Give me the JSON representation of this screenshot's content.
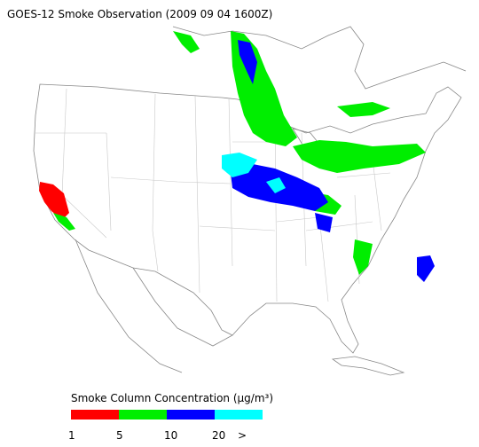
{
  "header": {
    "title": "GOES-12 Smoke Observation (2009 09 04  1600Z)"
  },
  "legend": {
    "title": "Smoke Column Concentration (μg/m³)",
    "colors": [
      "#ff0000",
      "#00ee00",
      "#0000ff",
      "#00ffff"
    ],
    "labels": [
      "1",
      "5",
      "10",
      "20",
      ">"
    ]
  }
}
